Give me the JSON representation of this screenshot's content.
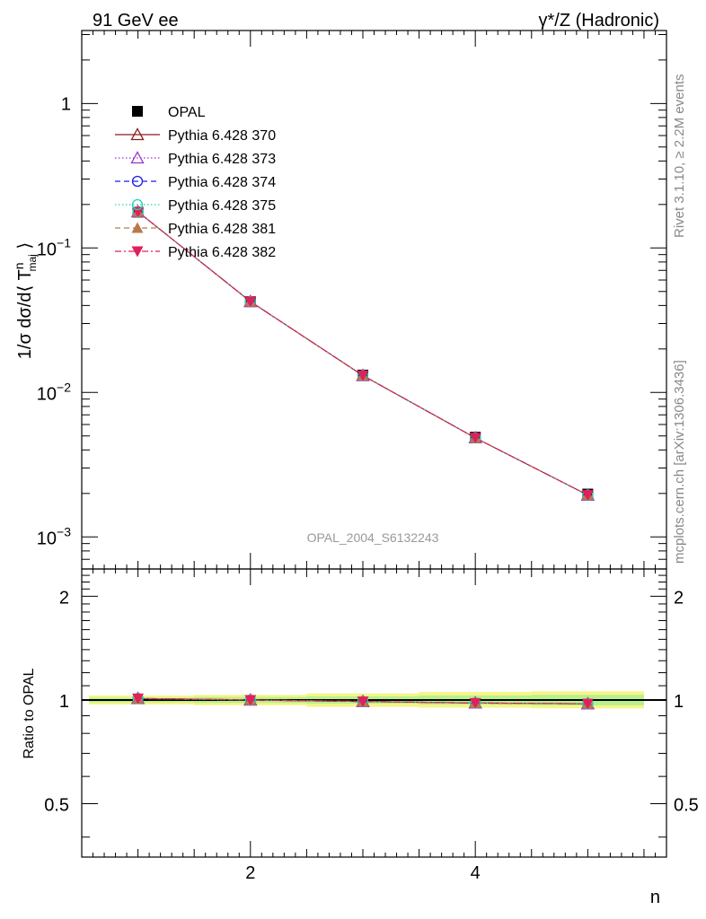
{
  "header": {
    "left_title": "91 GeV ee",
    "right_title": "γ*/Z (Hadronic)",
    "watermark": "OPAL_2004_S6132243",
    "side_rivet": "Rivet 3.1.10, ≥ 2.2M events",
    "side_mcplots": "mcplots.cern.ch [arXiv:1306.3436]"
  },
  "chart_data": [
    {
      "type": "scatter",
      "panel": "main",
      "title": "",
      "xlabel": "n",
      "ylabel": "1/σ dσ/d⟨ T^n_maj ⟩",
      "xlim": [
        0.5,
        5.7
      ],
      "ylim": [
        0.0006,
        3.2
      ],
      "yscale": "log",
      "ytick_labels": [
        "10^-3",
        "10^-2",
        "10^-1",
        "1"
      ],
      "legend_position": "top-left",
      "x": [
        1,
        2,
        3,
        4,
        5
      ],
      "series": [
        {
          "name": "OPAL",
          "marker": "filled-square",
          "color": "#000000",
          "values": [
            0.177,
            0.0425,
            0.0132,
            0.0049,
            0.00198
          ]
        },
        {
          "name": "Pythia 6.428 370",
          "marker": "open-triangle-up",
          "line": "solid",
          "color": "#8b1a1a",
          "values": [
            0.178,
            0.0426,
            0.0131,
            0.00485,
            0.00195
          ]
        },
        {
          "name": "Pythia 6.428 373",
          "marker": "open-triangle-up",
          "line": "dotted",
          "color": "#9932cc",
          "values": [
            0.178,
            0.0426,
            0.0131,
            0.00485,
            0.00195
          ]
        },
        {
          "name": "Pythia 6.428 374",
          "marker": "open-circle",
          "line": "dashed",
          "color": "#1f1fdf",
          "values": [
            0.178,
            0.0426,
            0.0131,
            0.00485,
            0.00195
          ]
        },
        {
          "name": "Pythia 6.428 375",
          "marker": "open-circle",
          "line": "dotted",
          "color": "#20d8b0",
          "values": [
            0.178,
            0.0426,
            0.0131,
            0.00485,
            0.00195
          ]
        },
        {
          "name": "Pythia 6.428 381",
          "marker": "filled-triangle-up",
          "line": "dashed",
          "color": "#b87a4a",
          "values": [
            0.178,
            0.0426,
            0.0131,
            0.00485,
            0.00195
          ]
        },
        {
          "name": "Pythia 6.428 382",
          "marker": "filled-triangle-down",
          "line": "dashdot",
          "color": "#e0205a",
          "values": [
            0.178,
            0.0426,
            0.0131,
            0.00485,
            0.00195
          ]
        }
      ]
    },
    {
      "type": "scatter",
      "panel": "ratio",
      "xlabel": "n",
      "ylabel": "Ratio to OPAL",
      "xlim": [
        0.5,
        5.7
      ],
      "ylim": [
        0.35,
        2.4
      ],
      "yscale": "log",
      "ytick_labels": [
        "0.5",
        "1",
        "2"
      ],
      "xtick_labels": [
        "2",
        "4"
      ],
      "x": [
        1,
        2,
        3,
        4,
        5
      ],
      "band": {
        "lower": [
          0.97,
          0.965,
          0.955,
          0.95,
          0.945
        ],
        "upper": [
          1.03,
          1.035,
          1.045,
          1.055,
          1.06
        ],
        "inner_lower": [
          0.985,
          0.98,
          0.975,
          0.97,
          0.965
        ],
        "inner_upper": [
          1.015,
          1.02,
          1.025,
          1.03,
          1.035
        ]
      },
      "series": [
        {
          "name": "Pythia 6.428 370",
          "values": [
            1.01,
            1.0,
            0.99,
            0.98,
            0.975
          ]
        },
        {
          "name": "Pythia 6.428 373",
          "values": [
            1.01,
            1.0,
            0.99,
            0.98,
            0.975
          ]
        },
        {
          "name": "Pythia 6.428 374",
          "values": [
            1.01,
            1.0,
            0.99,
            0.98,
            0.975
          ]
        },
        {
          "name": "Pythia 6.428 375",
          "values": [
            1.01,
            1.0,
            0.99,
            0.98,
            0.975
          ]
        },
        {
          "name": "Pythia 6.428 381",
          "values": [
            1.01,
            1.0,
            0.99,
            0.98,
            0.975
          ]
        },
        {
          "name": "Pythia 6.428 382",
          "values": [
            1.01,
            1.0,
            0.99,
            0.98,
            0.975
          ]
        }
      ]
    }
  ]
}
